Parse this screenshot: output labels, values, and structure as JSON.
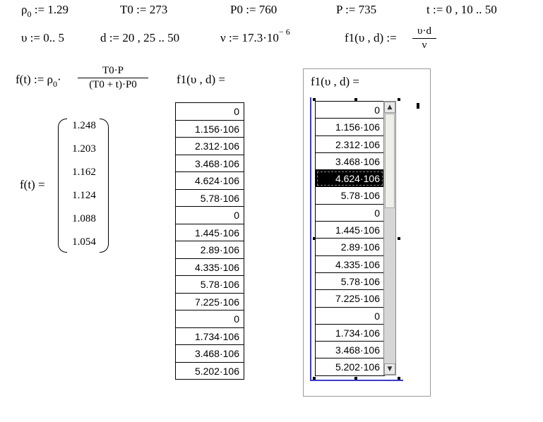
{
  "definitions": {
    "rho0": {
      "label": "ρ",
      "sub": "0",
      "assign": ":=",
      "value": "1.29"
    },
    "T0": {
      "label": "T0",
      "assign": ":=",
      "value": "273"
    },
    "P0": {
      "label": "P0",
      "assign": ":=",
      "value": "760"
    },
    "P": {
      "label": "P",
      "assign": ":=",
      "value": "735"
    },
    "t": {
      "label": "t",
      "assign": ":=",
      "value": "0 , 10 .. 50"
    },
    "upsilon": {
      "label": "υ",
      "assign": ":=",
      "value": "0.. 5"
    },
    "d": {
      "label": "d",
      "assign": ":=",
      "value": "20 , 25 .. 50"
    },
    "nu": {
      "label": "ν",
      "assign": ":=",
      "value": "17.3·10",
      "exp": "− 6"
    },
    "f1def": {
      "lhs": "f1(υ , d)",
      "assign": ":=",
      "num": "υ·d",
      "den": "ν"
    }
  },
  "ft_def": {
    "lhs": "f(t)",
    "assign": ":=",
    "rho": "ρ",
    "sub": "0",
    "dot": "·",
    "num": "T0·P",
    "den": "(T0 + t)·P0"
  },
  "ft_result": {
    "lhs": "f(t) =",
    "values": [
      "1.248",
      "1.203",
      "1.162",
      "1.124",
      "1.088",
      "1.054"
    ]
  },
  "f1_table_label": "f1(υ , d) =",
  "f1_values": [
    "0",
    "1.156·106",
    "2.312·106",
    "3.468·106",
    "4.624·106",
    "5.78·106",
    "0",
    "1.445·106",
    "2.89·106",
    "4.335·106",
    "5.78·106",
    "7.225·106",
    "0",
    "1.734·106",
    "3.468·106",
    "5.202·106"
  ],
  "scroll_panel": {
    "label": "f1(υ , d) =",
    "selected_index": 4,
    "scroll_up": "▲",
    "scroll_down": "▼",
    "scroll_position": 0.2
  }
}
